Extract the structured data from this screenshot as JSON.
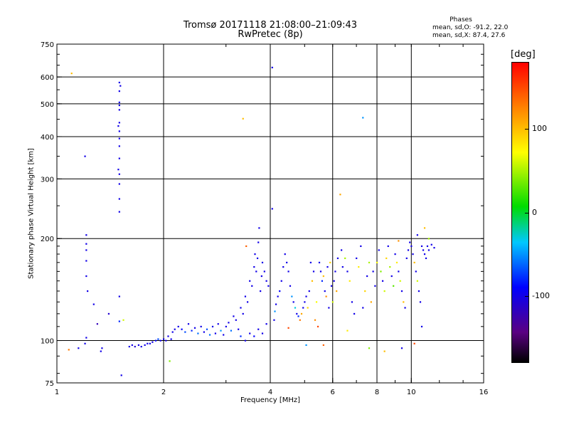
{
  "header": {
    "title_line1": "Tromsø 20171118 21:08:00–21:09:43",
    "title_line2": "RwPretec (8p)",
    "phases_title": "Phases",
    "stats_o": "mean, sd,O: -91.2, 22.0",
    "stats_x": "mean, sd,X:  87.4, 27.6"
  },
  "colorbar": {
    "unit_label": "[deg]",
    "ticks": [
      {
        "value": 100,
        "label": "100"
      },
      {
        "value": 0,
        "label": "0"
      },
      {
        "value": -100,
        "label": "-100"
      }
    ],
    "range": [
      -180,
      180
    ]
  },
  "chart_data": {
    "type": "scatter",
    "title": "Tromsø 20171118 21:08:00–21:09:43",
    "subtitle": "RwPretec (8p)",
    "xlabel": "Frequency [MHz]",
    "ylabel": "Stationary phase Virtual Height [km]",
    "xscale": "log",
    "yscale": "log",
    "xlim": [
      1,
      16
    ],
    "ylim": [
      75,
      750
    ],
    "xticks": [
      {
        "value": 1,
        "label": "1"
      },
      {
        "value": 2,
        "label": "2"
      },
      {
        "value": 4,
        "label": "4"
      },
      {
        "value": 6,
        "label": "6"
      },
      {
        "value": 8,
        "label": "8"
      },
      {
        "value": 10,
        "label": "10"
      },
      {
        "value": 16,
        "label": "16"
      }
    ],
    "yticks": [
      {
        "value": 75,
        "label": "75"
      },
      {
        "value": 100,
        "label": "100"
      },
      {
        "value": 200,
        "label": "200"
      },
      {
        "value": 300,
        "label": "300"
      },
      {
        "value": 400,
        "label": "400"
      },
      {
        "value": 500,
        "label": "500"
      },
      {
        "value": 600,
        "label": "600"
      },
      {
        "value": 750,
        "label": "750"
      }
    ],
    "grid_x": [
      2,
      4,
      6,
      8,
      10
    ],
    "grid_y": [
      100,
      200,
      300,
      400,
      500,
      600
    ],
    "color_scale": "phase_deg",
    "points": [
      [
        1.1,
        615,
        100
      ],
      [
        1.2,
        350,
        -100
      ],
      [
        1.21,
        205,
        -100
      ],
      [
        1.21,
        193,
        -100
      ],
      [
        1.21,
        185,
        -100
      ],
      [
        1.21,
        172,
        -100
      ],
      [
        1.21,
        155,
        -100
      ],
      [
        1.22,
        140,
        -100
      ],
      [
        1.21,
        102,
        -100
      ],
      [
        1.2,
        98,
        -100
      ],
      [
        1.08,
        94,
        130
      ],
      [
        1.15,
        95,
        -100
      ],
      [
        1.27,
        128,
        -100
      ],
      [
        1.3,
        112,
        -120
      ],
      [
        1.34,
        95,
        -100
      ],
      [
        1.33,
        93,
        -100
      ],
      [
        1.4,
        120,
        -110
      ],
      [
        1.5,
        578,
        -100
      ],
      [
        1.51,
        565,
        -100
      ],
      [
        1.5,
        545,
        -100
      ],
      [
        1.5,
        505,
        -100
      ],
      [
        1.5,
        495,
        -100
      ],
      [
        1.5,
        480,
        -100
      ],
      [
        1.5,
        440,
        -100
      ],
      [
        1.49,
        430,
        -100
      ],
      [
        1.5,
        415,
        -100
      ],
      [
        1.5,
        395,
        -100
      ],
      [
        1.5,
        375,
        -100
      ],
      [
        1.5,
        345,
        -100
      ],
      [
        1.49,
        320,
        -100
      ],
      [
        1.5,
        310,
        -100
      ],
      [
        1.5,
        290,
        -100
      ],
      [
        1.5,
        262,
        -100
      ],
      [
        1.5,
        240,
        -100
      ],
      [
        1.5,
        135,
        -100
      ],
      [
        1.5,
        114,
        -80
      ],
      [
        1.52,
        79,
        -100
      ],
      [
        1.54,
        115,
        60
      ],
      [
        1.6,
        96,
        -100
      ],
      [
        1.63,
        97,
        -100
      ],
      [
        1.66,
        96,
        -110
      ],
      [
        1.7,
        97,
        -100
      ],
      [
        1.73,
        96,
        -100
      ],
      [
        1.77,
        97,
        -100
      ],
      [
        1.8,
        98,
        -100
      ],
      [
        1.83,
        98,
        -100
      ],
      [
        1.86,
        99,
        -100
      ],
      [
        1.9,
        100,
        -90
      ],
      [
        1.93,
        101,
        -70
      ],
      [
        1.96,
        100,
        -100
      ],
      [
        2.0,
        101,
        -100
      ],
      [
        2.03,
        100,
        -100
      ],
      [
        2.06,
        103,
        -100
      ],
      [
        2.1,
        101,
        -100
      ],
      [
        2.12,
        106,
        -100
      ],
      [
        2.15,
        108,
        -100
      ],
      [
        2.08,
        87,
        40
      ],
      [
        2.2,
        110,
        -100
      ],
      [
        2.25,
        108,
        -90
      ],
      [
        2.3,
        106,
        -70
      ],
      [
        2.35,
        112,
        -100
      ],
      [
        2.4,
        107,
        -80
      ],
      [
        2.45,
        109,
        -100
      ],
      [
        2.5,
        105,
        -60
      ],
      [
        2.55,
        110,
        -100
      ],
      [
        2.6,
        106,
        -100
      ],
      [
        2.65,
        108,
        -70
      ],
      [
        2.7,
        104,
        -60
      ],
      [
        2.75,
        110,
        -100
      ],
      [
        2.8,
        105,
        -100
      ],
      [
        2.85,
        112,
        -100
      ],
      [
        2.9,
        107,
        -50
      ],
      [
        2.95,
        104,
        -100
      ],
      [
        3.0,
        110,
        -100
      ],
      [
        3.05,
        113,
        -100
      ],
      [
        3.1,
        107,
        -60
      ],
      [
        3.15,
        118,
        -100
      ],
      [
        3.2,
        115,
        -100
      ],
      [
        3.25,
        108,
        -100
      ],
      [
        3.3,
        125,
        -100
      ],
      [
        3.35,
        120,
        -100
      ],
      [
        3.4,
        135,
        -100
      ],
      [
        3.45,
        130,
        -100
      ],
      [
        3.5,
        150,
        -100
      ],
      [
        3.55,
        145,
        -100
      ],
      [
        3.6,
        165,
        -100
      ],
      [
        3.62,
        180,
        -100
      ],
      [
        3.65,
        160,
        -100
      ],
      [
        3.68,
        175,
        -100
      ],
      [
        3.7,
        195,
        -100
      ],
      [
        3.72,
        215,
        -100
      ],
      [
        3.75,
        140,
        -100
      ],
      [
        3.78,
        155,
        -100
      ],
      [
        3.8,
        170,
        -100
      ],
      [
        3.85,
        160,
        -100
      ],
      [
        3.9,
        150,
        -100
      ],
      [
        3.95,
        145,
        -100
      ],
      [
        3.5,
        105,
        -100
      ],
      [
        3.6,
        103,
        -90
      ],
      [
        3.7,
        108,
        -100
      ],
      [
        3.8,
        105,
        -100
      ],
      [
        3.9,
        112,
        -100
      ],
      [
        3.4,
        100,
        -100
      ],
      [
        3.3,
        103,
        -80
      ],
      [
        3.35,
        452,
        100
      ],
      [
        3.42,
        190,
        140
      ],
      [
        4.05,
        640,
        -100
      ],
      [
        4.05,
        245,
        -100
      ],
      [
        4.1,
        115,
        -100
      ],
      [
        4.12,
        122,
        -50
      ],
      [
        4.15,
        128,
        -100
      ],
      [
        4.2,
        135,
        -100
      ],
      [
        4.25,
        140,
        -90
      ],
      [
        4.3,
        150,
        -100
      ],
      [
        4.35,
        165,
        -100
      ],
      [
        4.4,
        180,
        -100
      ],
      [
        4.45,
        170,
        -100
      ],
      [
        4.5,
        160,
        -100
      ],
      [
        4.55,
        145,
        -100
      ],
      [
        4.6,
        135,
        -50
      ],
      [
        4.65,
        130,
        -100
      ],
      [
        4.7,
        125,
        -30
      ],
      [
        4.75,
        120,
        -100
      ],
      [
        4.8,
        118,
        -80
      ],
      [
        4.85,
        115,
        130
      ],
      [
        4.9,
        120,
        110
      ],
      [
        4.95,
        125,
        -100
      ],
      [
        5.0,
        130,
        -100
      ],
      [
        5.05,
        135,
        -100
      ],
      [
        5.1,
        125,
        90
      ],
      [
        5.15,
        140,
        -100
      ],
      [
        5.2,
        170,
        -100
      ],
      [
        5.25,
        150,
        100
      ],
      [
        5.3,
        160,
        -100
      ],
      [
        5.35,
        115,
        120
      ],
      [
        5.4,
        130,
        70
      ],
      [
        5.45,
        110,
        150
      ],
      [
        5.5,
        170,
        -100
      ],
      [
        5.55,
        160,
        -100
      ],
      [
        5.6,
        150,
        -80
      ],
      [
        5.65,
        155,
        100
      ],
      [
        5.7,
        140,
        -100
      ],
      [
        5.75,
        135,
        120
      ],
      [
        5.8,
        165,
        -100
      ],
      [
        5.85,
        125,
        -100
      ],
      [
        5.9,
        170,
        90
      ],
      [
        5.95,
        145,
        -100
      ],
      [
        6.0,
        130,
        60
      ],
      [
        6.05,
        150,
        -100
      ],
      [
        6.1,
        160,
        -100
      ],
      [
        6.15,
        140,
        110
      ],
      [
        6.2,
        175,
        -100
      ],
      [
        6.3,
        270,
        110
      ],
      [
        6.35,
        185,
        -100
      ],
      [
        6.4,
        165,
        -100
      ],
      [
        6.5,
        175,
        50
      ],
      [
        6.6,
        160,
        -100
      ],
      [
        6.7,
        150,
        80
      ],
      [
        6.8,
        130,
        -100
      ],
      [
        6.9,
        120,
        -100
      ],
      [
        7.0,
        175,
        -100
      ],
      [
        7.1,
        165,
        80
      ],
      [
        7.2,
        190,
        -100
      ],
      [
        7.3,
        455,
        -50
      ],
      [
        7.3,
        125,
        -100
      ],
      [
        7.4,
        140,
        90
      ],
      [
        7.5,
        155,
        -100
      ],
      [
        7.6,
        170,
        50
      ],
      [
        7.7,
        130,
        110
      ],
      [
        7.8,
        160,
        -100
      ],
      [
        7.9,
        145,
        -100
      ],
      [
        5.65,
        97,
        140
      ],
      [
        5.05,
        97,
        -50
      ],
      [
        6.6,
        107,
        80
      ],
      [
        7.6,
        95,
        40
      ],
      [
        4.5,
        109,
        150
      ],
      [
        8.0,
        170,
        70
      ],
      [
        8.1,
        185,
        -100
      ],
      [
        8.2,
        160,
        40
      ],
      [
        8.3,
        150,
        -100
      ],
      [
        8.4,
        140,
        60
      ],
      [
        8.5,
        175,
        90
      ],
      [
        8.6,
        190,
        -100
      ],
      [
        8.7,
        165,
        50
      ],
      [
        8.8,
        155,
        -100
      ],
      [
        8.9,
        145,
        30
      ],
      [
        9.0,
        180,
        -100
      ],
      [
        9.1,
        170,
        80
      ],
      [
        9.2,
        160,
        -100
      ],
      [
        9.3,
        150,
        60
      ],
      [
        9.4,
        140,
        -100
      ],
      [
        9.5,
        130,
        100
      ],
      [
        9.6,
        125,
        -100
      ],
      [
        9.7,
        175,
        -100
      ],
      [
        9.8,
        185,
        -100
      ],
      [
        9.9,
        195,
        -100
      ],
      [
        10.0,
        190,
        -100
      ],
      [
        10.1,
        180,
        -100
      ],
      [
        10.2,
        170,
        100
      ],
      [
        10.3,
        160,
        -100
      ],
      [
        10.4,
        150,
        60
      ],
      [
        10.5,
        140,
        -100
      ],
      [
        10.6,
        130,
        -100
      ],
      [
        10.7,
        190,
        -100
      ],
      [
        10.8,
        185,
        -100
      ],
      [
        10.9,
        180,
        -100
      ],
      [
        11.0,
        175,
        -100
      ],
      [
        11.1,
        190,
        -100
      ],
      [
        11.2,
        185,
        -100
      ],
      [
        11.4,
        192,
        -100
      ],
      [
        11.6,
        188,
        -100
      ],
      [
        8.4,
        93,
        100
      ],
      [
        9.4,
        95,
        -100
      ],
      [
        10.2,
        98,
        150
      ],
      [
        10.7,
        110,
        -100
      ],
      [
        9.2,
        197,
        120
      ],
      [
        10.4,
        205,
        -100
      ],
      [
        10.9,
        215,
        100
      ],
      [
        11.2,
        200,
        50
      ]
    ]
  }
}
